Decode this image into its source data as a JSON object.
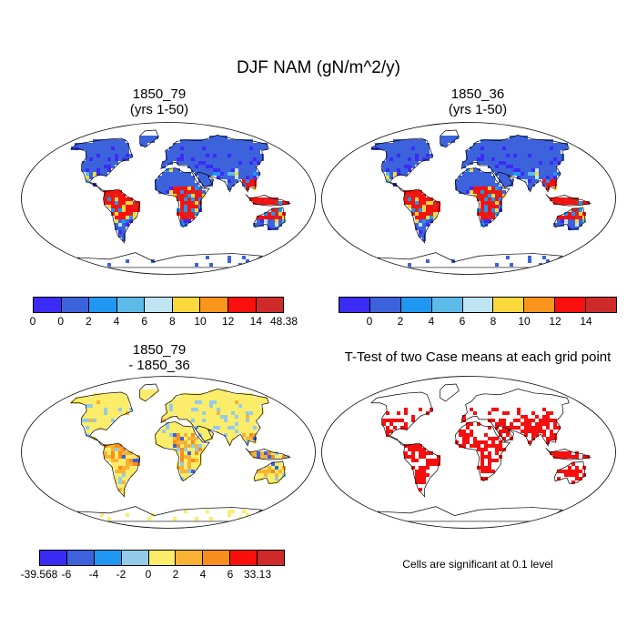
{
  "figure": {
    "title": "DJF NAM (gN/m^2/y)",
    "note": "Cells are significant at 0.1 level"
  },
  "panels": [
    {
      "title_line1": "1850_79",
      "title_line2": "(yrs 1-50)"
    },
    {
      "title_line1": "1850_36",
      "title_line2": "(yrs 1-50)"
    },
    {
      "title_line1": "1850_79",
      "title_line2": "- 1850_36"
    },
    {
      "title_line1": "T-Test of two Case means at each grid point",
      "title_line2": ""
    }
  ],
  "colorbars": [
    {
      "colors": [
        "#3b2cf5",
        "#3c62dc",
        "#1f97f3",
        "#5cbae9",
        "#bfe4f4",
        "#fbd83c",
        "#f9941c",
        "#f9100c",
        "#ce2a2a"
      ],
      "labels": [
        "0",
        "0",
        "2",
        "4",
        "6",
        "8",
        "10",
        "12",
        "14",
        "48.38"
      ]
    },
    {
      "colors": [
        "#3b2cf5",
        "#3c62dc",
        "#1f97f3",
        "#5cbae9",
        "#bfe4f4",
        "#fbd83c",
        "#f9941c",
        "#f9100c",
        "#ce2a2a"
      ],
      "labels": [
        "",
        "0",
        "2",
        "4",
        "6",
        "8",
        "10",
        "12",
        "14",
        ""
      ]
    },
    {
      "colors": [
        "#3b2cf5",
        "#3c62dc",
        "#1f97f3",
        "#93cbe9",
        "#fbed6a",
        "#f9b234",
        "#f98d1c",
        "#f9100c",
        "#ce2a2a"
      ],
      "labels": [
        "-39.568",
        "-6",
        "-4",
        "-2",
        "0",
        "2",
        "4",
        "6",
        "33.13"
      ]
    }
  ],
  "chart_data": [
    {
      "type": "heatmap",
      "title": "1850_79\n(yrs 1-50)",
      "colorbar_levels": [
        0,
        0,
        2,
        4,
        6,
        8,
        10,
        12,
        14,
        48.38
      ],
      "projection": "Robinson world map",
      "description_regions": {
        "tropics": "high (12-48.38)",
        "high_latitudes": "low (0-2)"
      }
    },
    {
      "type": "heatmap",
      "title": "1850_36\n(yrs 1-50)",
      "colorbar_levels": [
        0,
        2,
        4,
        6,
        8,
        10,
        12,
        14
      ],
      "projection": "Robinson world map"
    },
    {
      "type": "heatmap",
      "title": "1850_79\n- 1850_36",
      "colorbar_levels": [
        -39.568,
        -6,
        -4,
        -2,
        0,
        2,
        4,
        6,
        33.13
      ],
      "projection": "Robinson world map"
    },
    {
      "type": "heatmap",
      "title": "T-Test of two Case means at each grid point",
      "significance_level": 0.1,
      "projection": "Robinson world map"
    }
  ]
}
